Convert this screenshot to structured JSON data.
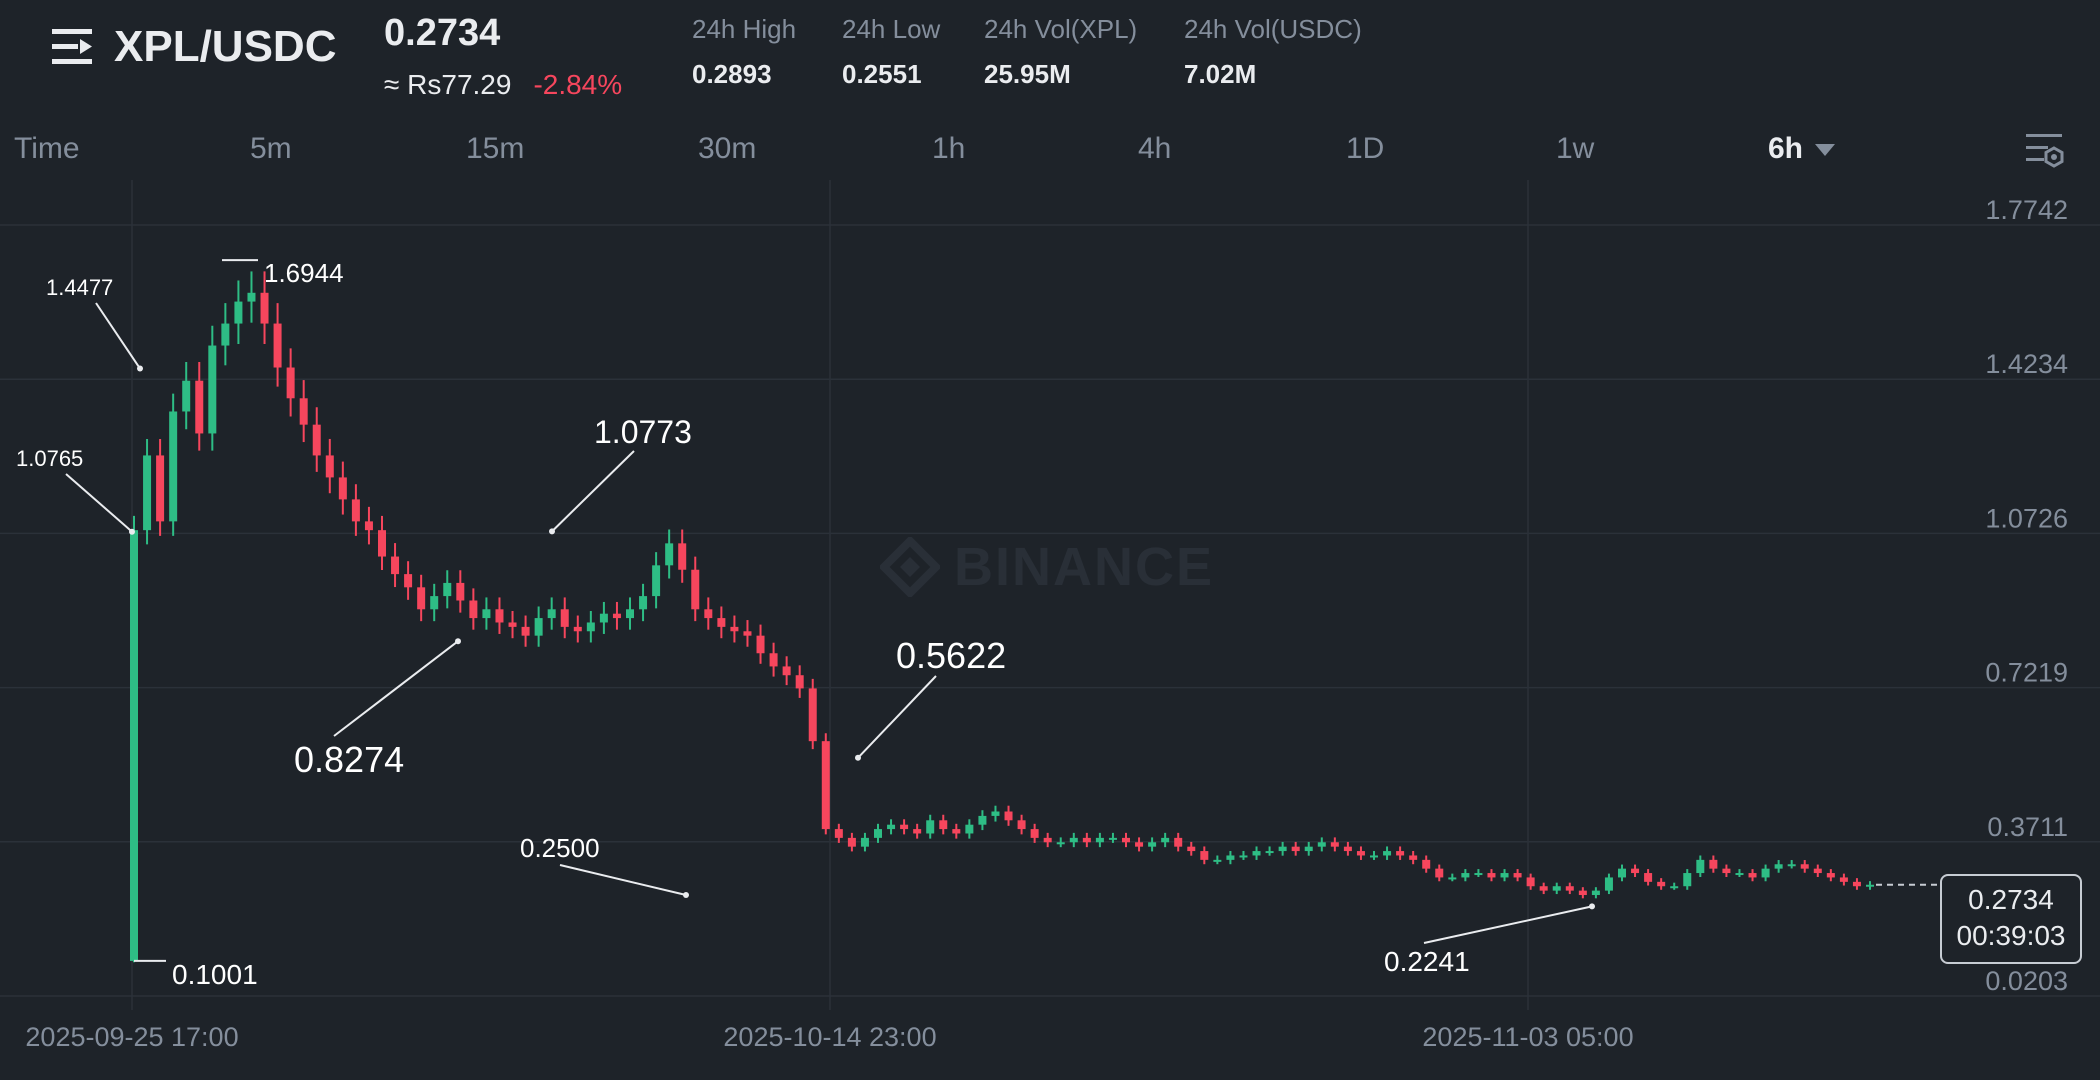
{
  "header": {
    "pair": "XPL/USDC",
    "last_price": "0.2734",
    "fiat_price": "≈ Rs77.29",
    "change": "-2.84%",
    "stats": [
      {
        "label": "24h High",
        "value": "0.2893"
      },
      {
        "label": "24h Low",
        "value": "0.2551"
      },
      {
        "label": "24h Vol(XPL)",
        "value": "25.95M"
      },
      {
        "label": "24h Vol(USDC)",
        "value": "7.02M"
      }
    ]
  },
  "tabs": [
    "Time",
    "5m",
    "15m",
    "30m",
    "1h",
    "4h",
    "1D",
    "1w",
    "6h"
  ],
  "active_tab": "6h",
  "icons": {
    "menu": "menu-icon",
    "settings": "chart-settings-icon",
    "dropdown": "chevron-down-icon"
  },
  "watermark": "BINANCE",
  "current": {
    "price": "0.2734",
    "countdown": "00:39:03"
  },
  "colors": {
    "up": "#2ebd85",
    "down": "#f6465d",
    "background": "#1e2329",
    "grid": "#2b3139",
    "text_muted": "#848e9c"
  },
  "chart_data": {
    "type": "candlestick",
    "interval": "6h",
    "y_ticks": [
      "1.7742",
      "1.4234",
      "1.0726",
      "0.7219",
      "0.3711",
      "0.0203"
    ],
    "ylim": [
      0.0203,
      1.7742
    ],
    "x_ticks": [
      "2025-09-25 17:00",
      "2025-10-14 23:00",
      "2025-11-03 05:00"
    ],
    "annotations": [
      {
        "label": "1.4477",
        "value": 1.4477
      },
      {
        "label": "1.6944",
        "value": 1.6944
      },
      {
        "label": "1.0765",
        "value": 1.0765
      },
      {
        "label": "0.1001",
        "value": 0.1001
      },
      {
        "label": "1.0773",
        "value": 1.0773
      },
      {
        "label": "0.8274",
        "value": 0.8274
      },
      {
        "label": "0.2500",
        "value": 0.25
      },
      {
        "label": "0.5622",
        "value": 0.5622
      },
      {
        "label": "0.2241",
        "value": 0.2241
      }
    ],
    "closes": [
      1.08,
      1.25,
      1.1,
      1.35,
      1.42,
      1.3,
      1.5,
      1.55,
      1.6,
      1.62,
      1.55,
      1.45,
      1.38,
      1.32,
      1.25,
      1.2,
      1.15,
      1.1,
      1.08,
      1.02,
      0.98,
      0.95,
      0.9,
      0.93,
      0.96,
      0.92,
      0.88,
      0.9,
      0.87,
      0.86,
      0.84,
      0.88,
      0.9,
      0.86,
      0.85,
      0.87,
      0.89,
      0.88,
      0.9,
      0.93,
      1.0,
      1.05,
      0.99,
      0.9,
      0.88,
      0.86,
      0.85,
      0.84,
      0.8,
      0.77,
      0.75,
      0.72,
      0.6,
      0.4,
      0.38,
      0.36,
      0.38,
      0.4,
      0.41,
      0.4,
      0.39,
      0.42,
      0.4,
      0.39,
      0.41,
      0.43,
      0.44,
      0.42,
      0.4,
      0.38,
      0.37,
      0.37,
      0.38,
      0.37,
      0.38,
      0.38,
      0.37,
      0.36,
      0.37,
      0.38,
      0.36,
      0.35,
      0.33,
      0.33,
      0.34,
      0.34,
      0.35,
      0.35,
      0.36,
      0.35,
      0.36,
      0.37,
      0.36,
      0.35,
      0.34,
      0.34,
      0.35,
      0.34,
      0.33,
      0.31,
      0.29,
      0.29,
      0.3,
      0.3,
      0.29,
      0.3,
      0.29,
      0.27,
      0.26,
      0.27,
      0.26,
      0.25,
      0.26,
      0.29,
      0.31,
      0.3,
      0.28,
      0.27,
      0.27,
      0.3,
      0.33,
      0.31,
      0.3,
      0.3,
      0.29,
      0.31,
      0.32,
      0.32,
      0.31,
      0.3,
      0.29,
      0.28,
      0.27,
      0.2734
    ]
  }
}
